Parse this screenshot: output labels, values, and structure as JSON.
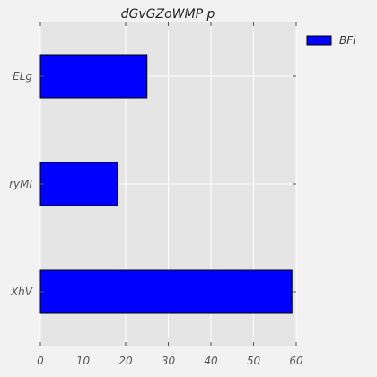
{
  "chart_data": {
    "type": "bar",
    "orientation": "horizontal",
    "title": "dGvGZoWMP p",
    "xlabel": "",
    "ylabel": "",
    "categories": [
      "XhV",
      "ryMI",
      "ELg"
    ],
    "series": [
      {
        "name": "BFi",
        "values": [
          59,
          18,
          25
        ]
      }
    ],
    "xlim": [
      0,
      60
    ],
    "xticks": [
      0,
      10,
      20,
      30,
      40,
      50,
      60
    ],
    "grid": true,
    "legend_position": "top-right",
    "colors": {
      "bar_fill": "#0000ff",
      "bar_edge": "#000000",
      "plot_bg": "#e5e5e5",
      "page_bg": "#f2f2f2",
      "grid": "#ffffff"
    }
  }
}
